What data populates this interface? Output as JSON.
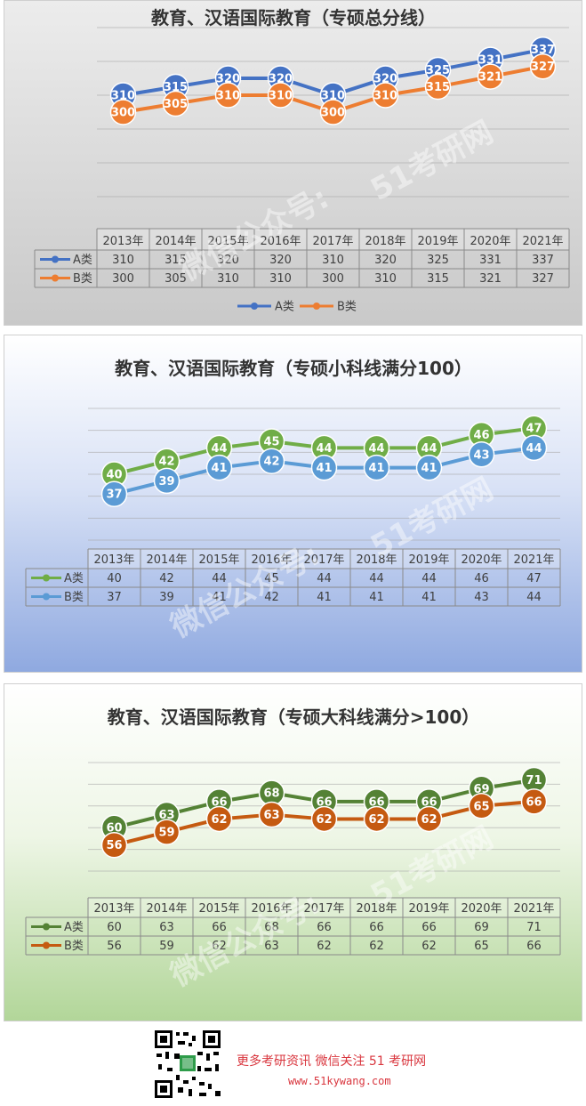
{
  "watermark": {
    "line1": "51考研网",
    "line2": "微信公众号:"
  },
  "footer": {
    "line1": "更多考研资讯 微信关注 51 考研网",
    "line2": "www.51kywang.com"
  },
  "chart_data": [
    {
      "type": "line",
      "title": "教育、汉语国际教育（专硕总分线）",
      "categories": [
        "2013年",
        "2014年",
        "2015年",
        "2016年",
        "2017年",
        "2018年",
        "2019年",
        "2020年",
        "2021年"
      ],
      "ylim": [
        250,
        350
      ],
      "grid": true,
      "legend": "bottom",
      "series": [
        {
          "name": "A类",
          "color": "#4472c4",
          "values": [
            310,
            315,
            320,
            320,
            310,
            320,
            325,
            331,
            337
          ]
        },
        {
          "name": "B类",
          "color": "#ed7d31",
          "values": [
            300,
            305,
            310,
            310,
            300,
            310,
            315,
            321,
            327
          ]
        }
      ]
    },
    {
      "type": "line",
      "title": "教育、汉语国际教育（专硕小科线满分100）",
      "categories": [
        "2013年",
        "2014年",
        "2015年",
        "2016年",
        "2017年",
        "2018年",
        "2019年",
        "2020年",
        "2021年"
      ],
      "ylim": [
        30,
        50
      ],
      "grid": true,
      "legend": "none",
      "series": [
        {
          "name": "A类",
          "color": "#70ad47",
          "values": [
            40,
            42,
            44,
            45,
            44,
            44,
            44,
            46,
            47
          ]
        },
        {
          "name": "B类",
          "color": "#5b9bd5",
          "values": [
            37,
            39,
            41,
            42,
            41,
            41,
            41,
            43,
            44
          ]
        }
      ]
    },
    {
      "type": "line",
      "title": "教育、汉语国际教育（专硕大科线满分>100）",
      "categories": [
        "2013年",
        "2014年",
        "2015年",
        "2016年",
        "2017年",
        "2018年",
        "2019年",
        "2020年",
        "2021年"
      ],
      "ylim": [
        50,
        75
      ],
      "grid": true,
      "legend": "none",
      "series": [
        {
          "name": "A类",
          "color": "#548235",
          "values": [
            60,
            63,
            66,
            68,
            66,
            66,
            66,
            69,
            71
          ]
        },
        {
          "name": "B类",
          "color": "#c55a11",
          "values": [
            56,
            59,
            62,
            63,
            62,
            62,
            62,
            65,
            66
          ]
        }
      ]
    }
  ]
}
